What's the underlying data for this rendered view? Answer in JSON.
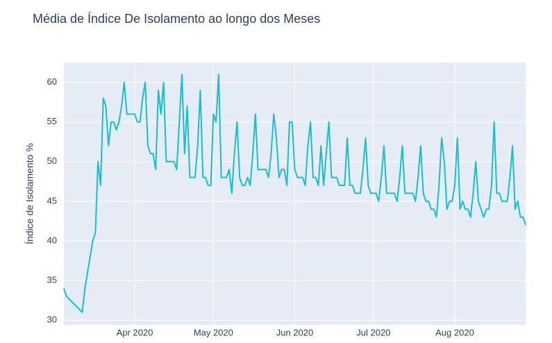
{
  "chart_data": {
    "type": "line",
    "title": "Média de Índice De Isolamento ao longo dos Meses",
    "y_label": "Índice de Isolamento %",
    "color": "#17becf",
    "grid": true,
    "xlim": [
      "2020-03-05",
      "2020-08-28"
    ],
    "xticks": [
      {
        "value": "2020-04-01",
        "label": "Apr 2020"
      },
      {
        "value": "2020-05-01",
        "label": "May 2020"
      },
      {
        "value": "2020-06-01",
        "label": "Jun 2020"
      },
      {
        "value": "2020-07-01",
        "label": "Jul 2020"
      },
      {
        "value": "2020-08-01",
        "label": "Aug 2020"
      }
    ],
    "ylim": [
      29.4,
      62.5
    ],
    "yticks": [
      30,
      35,
      40,
      45,
      50,
      55,
      60
    ],
    "x": [
      "2020-03-05",
      "2020-03-06",
      "2020-03-12",
      "2020-03-13",
      "2020-03-14",
      "2020-03-15",
      "2020-03-16",
      "2020-03-17",
      "2020-03-18",
      "2020-03-19",
      "2020-03-20",
      "2020-03-21",
      "2020-03-22",
      "2020-03-23",
      "2020-03-24",
      "2020-03-25",
      "2020-03-26",
      "2020-03-27",
      "2020-03-28",
      "2020-03-29",
      "2020-03-30",
      "2020-03-31",
      "2020-04-01",
      "2020-04-02",
      "2020-04-03",
      "2020-04-04",
      "2020-04-05",
      "2020-04-06",
      "2020-04-07",
      "2020-04-08",
      "2020-04-09",
      "2020-04-10",
      "2020-04-11",
      "2020-04-12",
      "2020-04-13",
      "2020-04-14",
      "2020-04-15",
      "2020-04-16",
      "2020-04-17",
      "2020-04-18",
      "2020-04-19",
      "2020-04-20",
      "2020-04-21",
      "2020-04-22",
      "2020-04-23",
      "2020-04-24",
      "2020-04-25",
      "2020-04-26",
      "2020-04-27",
      "2020-04-28",
      "2020-04-29",
      "2020-04-30",
      "2020-05-01",
      "2020-05-02",
      "2020-05-03",
      "2020-05-04",
      "2020-05-05",
      "2020-05-06",
      "2020-05-07",
      "2020-05-08",
      "2020-05-09",
      "2020-05-10",
      "2020-05-11",
      "2020-05-12",
      "2020-05-13",
      "2020-05-14",
      "2020-05-15",
      "2020-05-16",
      "2020-05-17",
      "2020-05-18",
      "2020-05-19",
      "2020-05-20",
      "2020-05-21",
      "2020-05-22",
      "2020-05-23",
      "2020-05-24",
      "2020-05-25",
      "2020-05-26",
      "2020-05-27",
      "2020-05-28",
      "2020-05-29",
      "2020-05-30",
      "2020-05-31",
      "2020-06-01",
      "2020-06-02",
      "2020-06-03",
      "2020-06-04",
      "2020-06-05",
      "2020-06-06",
      "2020-06-07",
      "2020-06-08",
      "2020-06-09",
      "2020-06-10",
      "2020-06-11",
      "2020-06-12",
      "2020-06-13",
      "2020-06-14",
      "2020-06-15",
      "2020-06-16",
      "2020-06-17",
      "2020-06-18",
      "2020-06-19",
      "2020-06-20",
      "2020-06-21",
      "2020-06-22",
      "2020-06-23",
      "2020-06-24",
      "2020-06-25",
      "2020-06-26",
      "2020-06-27",
      "2020-06-28",
      "2020-06-29",
      "2020-06-30",
      "2020-07-01",
      "2020-07-02",
      "2020-07-03",
      "2020-07-04",
      "2020-07-05",
      "2020-07-06",
      "2020-07-07",
      "2020-07-08",
      "2020-07-09",
      "2020-07-10",
      "2020-07-11",
      "2020-07-12",
      "2020-07-13",
      "2020-07-14",
      "2020-07-15",
      "2020-07-16",
      "2020-07-17",
      "2020-07-18",
      "2020-07-19",
      "2020-07-20",
      "2020-07-21",
      "2020-07-22",
      "2020-07-23",
      "2020-07-24",
      "2020-07-25",
      "2020-07-26",
      "2020-07-27",
      "2020-07-28",
      "2020-07-29",
      "2020-07-30",
      "2020-07-31",
      "2020-08-01",
      "2020-08-02",
      "2020-08-03",
      "2020-08-04",
      "2020-08-05",
      "2020-08-06",
      "2020-08-07",
      "2020-08-08",
      "2020-08-09",
      "2020-08-10",
      "2020-08-11",
      "2020-08-12",
      "2020-08-13",
      "2020-08-14",
      "2020-08-15",
      "2020-08-16",
      "2020-08-17",
      "2020-08-18",
      "2020-08-19",
      "2020-08-20",
      "2020-08-21",
      "2020-08-22",
      "2020-08-23",
      "2020-08-24",
      "2020-08-25",
      "2020-08-26",
      "2020-08-27",
      "2020-08-28"
    ],
    "values": [
      34,
      33,
      31,
      34,
      36,
      38,
      40,
      41,
      50,
      47,
      58,
      57,
      52,
      55,
      55,
      54,
      55,
      57,
      60,
      56,
      56,
      56,
      56,
      55,
      55,
      58,
      60,
      52,
      51,
      51,
      49,
      59,
      56,
      60,
      50,
      50,
      50,
      50,
      49,
      55,
      61,
      51,
      57,
      48,
      48,
      48,
      52,
      59,
      48,
      48,
      47,
      47,
      56,
      55,
      61,
      48,
      48,
      48,
      49,
      46,
      51,
      55,
      48,
      47,
      47,
      48,
      47,
      51,
      56,
      49,
      49,
      49,
      49,
      48,
      51,
      56,
      53,
      48,
      49,
      49,
      47,
      55,
      55,
      49,
      48,
      48,
      48,
      47,
      52,
      55,
      48,
      48,
      47,
      52,
      47,
      51,
      55,
      48,
      48,
      48,
      47,
      47,
      47,
      53,
      47,
      47,
      46,
      46,
      46,
      49,
      53,
      47,
      46,
      46,
      46,
      45,
      48,
      52,
      46,
      46,
      46,
      46,
      45,
      48,
      52,
      46,
      46,
      46,
      46,
      45,
      48,
      52,
      46,
      45,
      45,
      44,
      44,
      43,
      47,
      53,
      50,
      44,
      45,
      45,
      47,
      53,
      44,
      45,
      44,
      44,
      43,
      46,
      50,
      45,
      44,
      43,
      44,
      44,
      47,
      55,
      46,
      46,
      45,
      45,
      45,
      48,
      52,
      44,
      45,
      43,
      43,
      42
    ]
  }
}
